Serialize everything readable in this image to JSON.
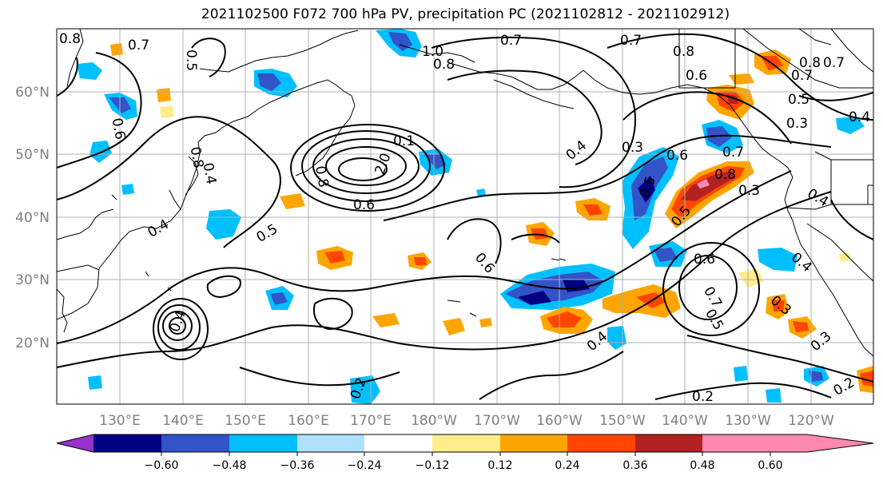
{
  "title": "2021102500 F072 700 hPa PV, precipitation PC (2021102812 - 2021102912)",
  "map": {
    "lat_ticks": [
      "20°N",
      "30°N",
      "40°N",
      "50°N",
      "60°N"
    ],
    "lon_ticks": [
      "130°E",
      "140°E",
      "150°E",
      "160°E",
      "170°E",
      "180°W",
      "170°W",
      "160°W",
      "150°W",
      "140°W",
      "130°W",
      "120°W"
    ],
    "contour_labels": [
      "0.8",
      "0.7",
      "0.5",
      "1.0",
      "0.8",
      "0.7",
      "0.7",
      "0.8",
      "0.6",
      "0.7",
      "0.7",
      "0.8",
      "0.5",
      "0.3",
      "0.4",
      "0.6",
      "0.8",
      "0.4",
      "0.1",
      "2.0",
      "0.8",
      "0.6",
      "0.4",
      "0.3",
      "0.6",
      "0.7",
      "0.8",
      "0.3",
      "0.4",
      "0.5",
      "0.5",
      "0.4",
      "0.5",
      "0.4",
      "0.6",
      "0.6",
      "0.7",
      "0.5",
      "0.3",
      "0.4",
      "0.3",
      "0.2",
      "0.2",
      "0.4",
      "0.2"
    ]
  },
  "colorbar": {
    "ticks": [
      "−0.60",
      "−0.48",
      "−0.36",
      "−0.24",
      "−0.12",
      "0.12",
      "0.24",
      "0.36",
      "0.48",
      "0.60"
    ],
    "colors": [
      "#9932cc",
      "#000080",
      "#3353c8",
      "#00bfff",
      "#b0e0ff",
      "#ffffff",
      "#ffec8b",
      "#ffa500",
      "#ff4500",
      "#b22222",
      "#ff88b0"
    ]
  }
}
